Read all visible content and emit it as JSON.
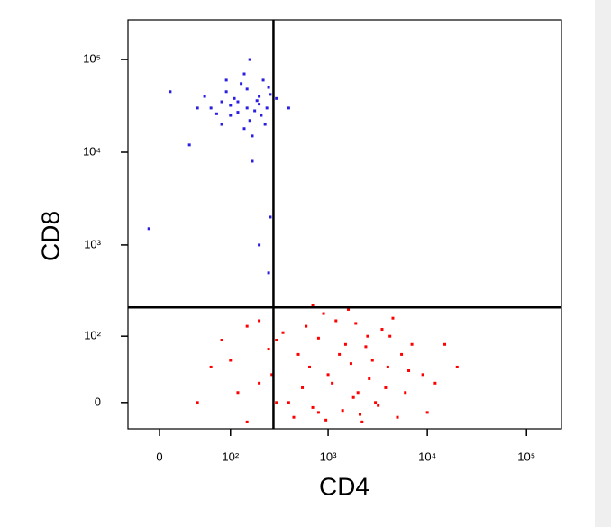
{
  "chart_data": {
    "type": "scatter",
    "x_label": "CD4",
    "y_label": "CD8",
    "x_scale": {
      "type": "asinh",
      "cofactor": 40
    },
    "y_scale": {
      "type": "asinh",
      "cofactor": 40
    },
    "xlim": [
      -32,
      225000
    ],
    "ylim": [
      -28,
      268000
    ],
    "xticks": [
      0,
      {
        "value": 100,
        "label": "10²"
      },
      {
        "value": 1000,
        "label": "10³"
      },
      {
        "value": 10000,
        "label": "10⁴"
      },
      {
        "value": 100000,
        "label": "10⁵"
      }
    ],
    "yticks": [
      0,
      {
        "value": 100,
        "label": "10²"
      },
      {
        "value": 1000,
        "label": "10³"
      },
      {
        "value": 10000,
        "label": "10⁴"
      },
      {
        "value": 100000,
        "label": "10⁵"
      }
    ],
    "gates": {
      "x": 280,
      "y": 210
    },
    "series": [
      {
        "color": "#2a1ee0",
        "x": [
          150,
          100,
          200,
          80,
          250,
          120,
          180,
          60,
          220,
          140,
          90,
          160,
          200,
          110,
          70,
          240,
          130,
          50,
          170,
          210,
          100,
          260,
          150,
          80,
          190,
          120,
          230,
          40,
          300,
          140,
          10,
          400,
          170,
          260,
          200,
          250,
          -10,
          30,
          160,
          90
        ],
        "y": [
          30000,
          25000,
          40000,
          20000,
          50000,
          35000,
          28000,
          30000,
          60000,
          18000,
          45000,
          22000,
          33000,
          38000,
          26000,
          30000,
          55000,
          40000,
          15000,
          25000,
          32000,
          42000,
          48000,
          35000,
          36000,
          27000,
          20000,
          30000,
          38000,
          70000,
          45000,
          30000,
          8000,
          2000,
          1000,
          500,
          1500,
          12000,
          100000,
          60000
        ]
      },
      {
        "color": "#ff0000",
        "x": [
          1000,
          2000,
          500,
          3000,
          800,
          1500,
          4000,
          200,
          100,
          6000,
          2500,
          700,
          1200,
          300,
          5000,
          9000,
          150,
          60,
          1800,
          3500,
          400,
          250,
          12000,
          900,
          2200,
          600,
          7000,
          1400,
          350,
          2800,
          120,
          80,
          4500,
          20000,
          1100,
          650,
          3200,
          1600,
          200,
          5500,
          450,
          2600,
          800,
          1900,
          10000,
          300,
          150,
          3800,
          1300,
          700,
          40,
          2400,
          550,
          6500,
          950,
          1700,
          4200,
          270,
          15000,
          2100
        ],
        "y": [
          30,
          10,
          60,
          0,
          -10,
          80,
          40,
          20,
          50,
          10,
          100,
          -5,
          150,
          90,
          -15,
          30,
          -20,
          40,
          5,
          120,
          0,
          70,
          20,
          180,
          -20,
          130,
          80,
          -8,
          110,
          50,
          10,
          90,
          160,
          40,
          20,
          40,
          -3,
          200,
          150,
          60,
          -15,
          25,
          95,
          140,
          -10,
          0,
          130,
          15,
          60,
          220,
          0,
          75,
          15,
          35,
          -18,
          45,
          100,
          30,
          80,
          -12
        ]
      }
    ]
  }
}
